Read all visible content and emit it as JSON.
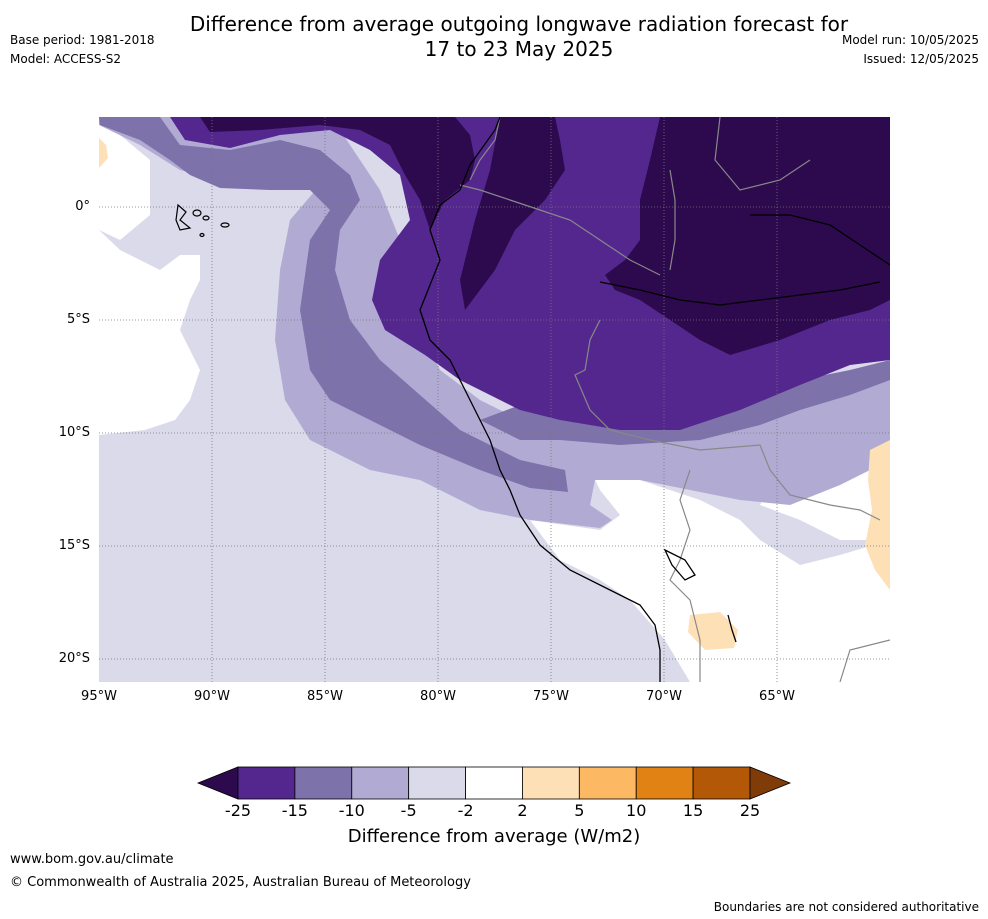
{
  "header": {
    "title_line1": "Difference from average outgoing longwave radiation forecast for",
    "title_line2": "17 to 23 May 2025",
    "base_period": "Base period: 1981-2018",
    "model": "Model: ACCESS-S2",
    "model_run": "Model run: 10/05/2025",
    "issued": "Issued: 12/05/2025"
  },
  "map": {
    "lat_labels": [
      "0°",
      "5°S",
      "10°S",
      "15°S",
      "20°S"
    ],
    "lon_labels": [
      "95°W",
      "90°W",
      "85°W",
      "80°W",
      "75°W",
      "70°W",
      "65°W"
    ]
  },
  "colorbar": {
    "ticks": [
      "-25",
      "-15",
      "-10",
      "-5",
      "-2",
      "2",
      "5",
      "10",
      "15",
      "25"
    ],
    "colors": [
      "#2d0a4e",
      "#54278f",
      "#7e72aa",
      "#b1abd4",
      "#dadaeb",
      "#ffffff",
      "#fee0b6",
      "#fdb863",
      "#e08214",
      "#b35806",
      "#7f3b08"
    ],
    "label": "Difference from average (W/m2)"
  },
  "footer": {
    "url": "www.bom.gov.au/climate",
    "copyright": "© Commonwealth of Australia 2025, Australian Bureau of Meteorology",
    "disclaimer": "Boundaries are not considered authoritative"
  }
}
